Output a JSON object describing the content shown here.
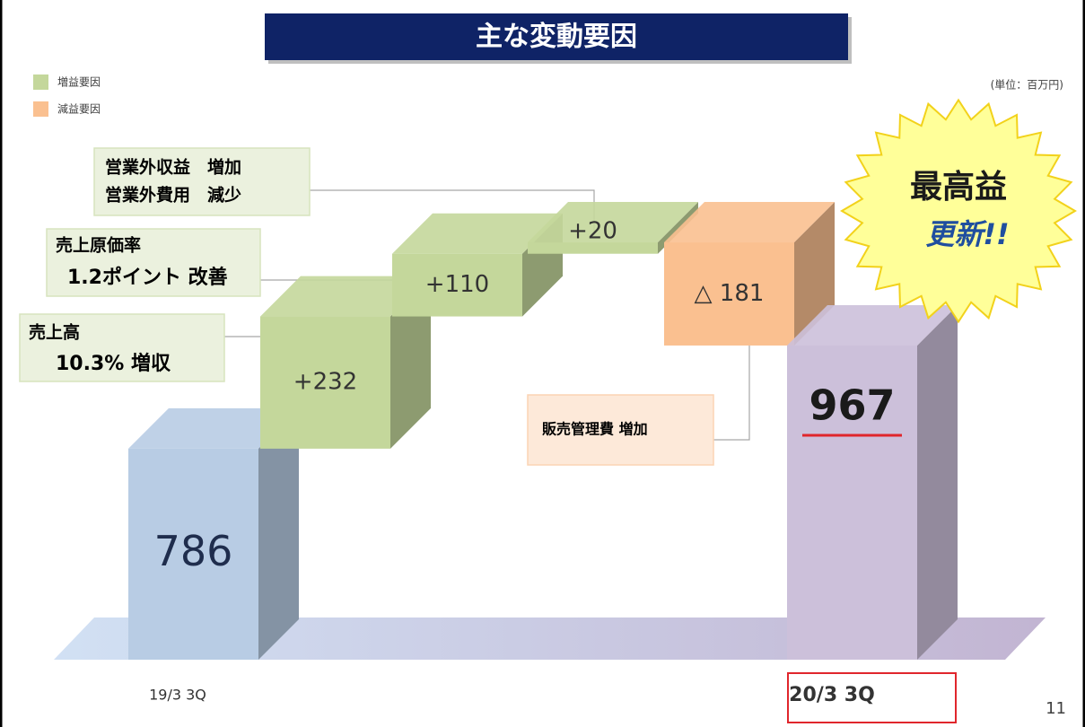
{
  "chart_data": {
    "type": "waterfall",
    "title": "主な変動要因",
    "unit_label": "(単位：百万円)",
    "legend": [
      {
        "label": "増益要因",
        "color": "#c4d79b"
      },
      {
        "label": "減益要因",
        "color": "#fac090"
      }
    ],
    "categories": [
      "19/3 3Q",
      null,
      null,
      null,
      null,
      "20/3 3Q"
    ],
    "values": [
      786,
      232,
      110,
      20,
      -181,
      967
    ],
    "value_labels": [
      "786",
      "+232",
      "+110",
      "+20",
      "△ 181",
      "967"
    ],
    "bar_colors": [
      "#b8cce4",
      "#c4d79b",
      "#c4d79b",
      "#c4d79b",
      "#fac090",
      "#ccc0da"
    ],
    "annotations": {
      "non_operating": [
        "営業外収益　増加",
        "営業外費用　減少"
      ],
      "cost_ratio": [
        "売上原価率",
        "1.2ポイント 改善"
      ],
      "sales": [
        "売上高",
        "10.3% 増収"
      ],
      "sga": [
        "販売管理費 増加"
      ],
      "badge": [
        "最高益",
        "更新!!"
      ]
    },
    "page_number": "11"
  }
}
